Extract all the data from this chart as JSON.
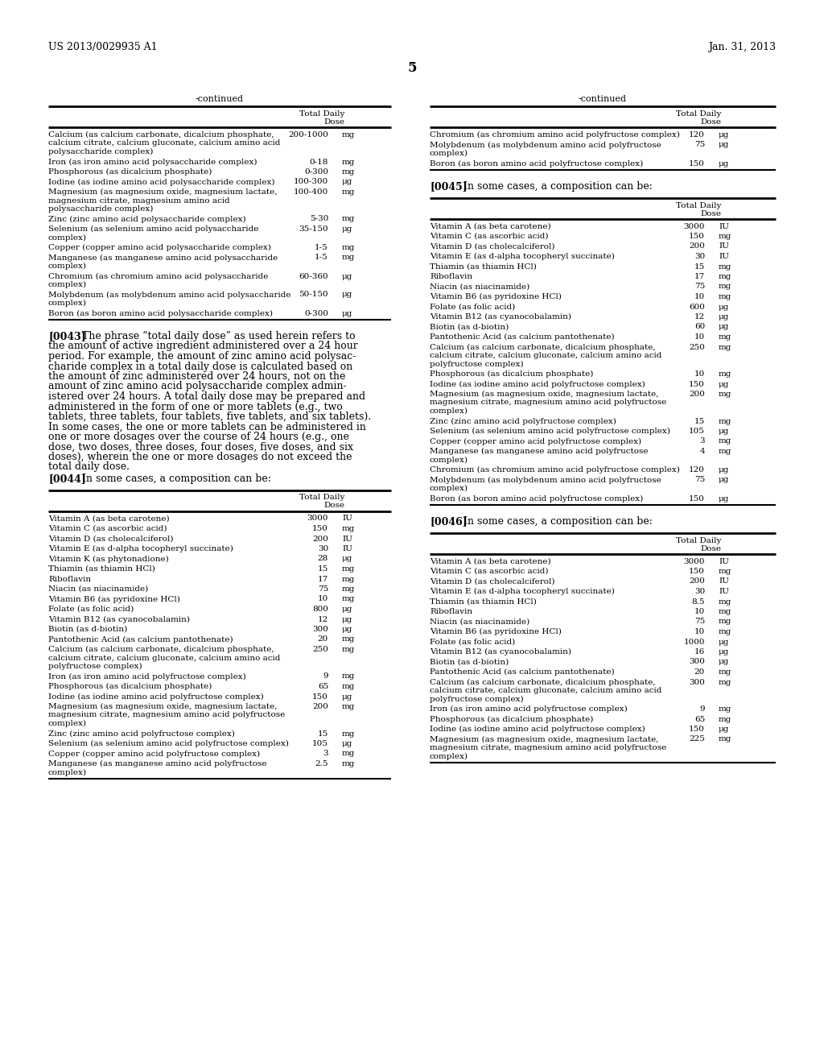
{
  "bg_color": "#ffffff",
  "header_left": "US 2013/0029935 A1",
  "header_right": "Jan. 31, 2013",
  "page_number": "5",
  "left_table_title": "-continued",
  "right_table_title": "-continued",
  "left_table_rows": [
    [
      "Calcium (as calcium carbonate, dicalcium phosphate,\ncalcium citrate, calcium gluconate, calcium amino acid\npolysaccharide complex)",
      "200-1000",
      "mg"
    ],
    [
      "Iron (as iron amino acid polysaccharide complex)",
      "0-18",
      "mg"
    ],
    [
      "Phosphorous (as dicalcium phosphate)",
      "0-300",
      "mg"
    ],
    [
      "Iodine (as iodine amino acid polysaccharide complex)",
      "100-300",
      "μg"
    ],
    [
      "Magnesium (as magnesium oxide, magnesium lactate,\nmagnesium citrate, magnesium amino acid\npolysaccharide complex)",
      "100-400",
      "mg"
    ],
    [
      "Zinc (zinc amino acid polysaccharide complex)",
      "5-30",
      "mg"
    ],
    [
      "Selenium (as selenium amino acid polysaccharide\ncomplex)",
      "35-150",
      "μg"
    ],
    [
      "Copper (copper amino acid polysaccharide complex)",
      "1-5",
      "mg"
    ],
    [
      "Manganese (as manganese amino acid polysaccharide\ncomplex)",
      "1-5",
      "mg"
    ],
    [
      "Chromium (as chromium amino acid polysaccharide\ncomplex)",
      "60-360",
      "μg"
    ],
    [
      "Molybdenum (as molybdenum amino acid polysaccharide\ncomplex)",
      "50-150",
      "μg"
    ],
    [
      "Boron (as boron amino acid polysaccharide complex)",
      "0-300",
      "μg"
    ]
  ],
  "right_table_rows": [
    [
      "Chromium (as chromium amino acid polyfructose complex)",
      "120",
      "μg"
    ],
    [
      "Molybdenum (as molybdenum amino acid polyfructose\ncomplex)",
      "75",
      "μg"
    ],
    [
      "Boron (as boron amino acid polyfructose complex)",
      "150",
      "μg"
    ]
  ],
  "para_0043_lines": [
    "The phrase “total daily dose” as used herein refers to",
    "the amount of active ingredient administered over a 24 hour",
    "period. For example, the amount of zinc amino acid polysac-",
    "charide complex in a total daily dose is calculated based on",
    "the amount of zinc administered over 24 hours, not on the",
    "amount of zinc amino acid polysaccharide complex admin-",
    "istered over 24 hours. A total daily dose may be prepared and",
    "administered in the form of one or more tablets (e.g., two",
    "tablets, three tablets, four tablets, five tablets, and six tablets).",
    "In some cases, the one or more tablets can be administered in",
    "one or more dosages over the course of 24 hours (e.g., one",
    "dose, two doses, three doses, four doses, five doses, and six",
    "doses), wherein the one or more dosages do not exceed the",
    "total daily dose."
  ],
  "table_0044_rows": [
    [
      "Vitamin A (as beta carotene)",
      "3000",
      "IU"
    ],
    [
      "Vitamin C (as ascorbic acid)",
      "150",
      "mg"
    ],
    [
      "Vitamin D (as cholecalciferol)",
      "200",
      "IU"
    ],
    [
      "Vitamin E (as d-alpha tocopheryl succinate)",
      "30",
      "IU"
    ],
    [
      "Vitamin K (as phytonadione)",
      "28",
      "μg"
    ],
    [
      "Thiamin (as thiamin HCl)",
      "15",
      "mg"
    ],
    [
      "Riboflavin",
      "17",
      "mg"
    ],
    [
      "Niacin (as niacinamide)",
      "75",
      "mg"
    ],
    [
      "Vitamin B6 (as pyridoxine HCl)",
      "10",
      "mg"
    ],
    [
      "Folate (as folic acid)",
      "800",
      "μg"
    ],
    [
      "Vitamin B12 (as cyanocobalamin)",
      "12",
      "μg"
    ],
    [
      "Biotin (as d-biotin)",
      "300",
      "μg"
    ],
    [
      "Pantothenic Acid (as calcium pantothenate)",
      "20",
      "mg"
    ],
    [
      "Calcium (as calcium carbonate, dicalcium phosphate,\ncalcium citrate, calcium gluconate, calcium amino acid\npolyfructose complex)",
      "250",
      "mg"
    ],
    [
      "Iron (as iron amino acid polyfructose complex)",
      "9",
      "mg"
    ],
    [
      "Phosphorous (as dicalcium phosphate)",
      "65",
      "mg"
    ],
    [
      "Iodine (as iodine amino acid polyfructose complex)",
      "150",
      "μg"
    ],
    [
      "Magnesium (as magnesium oxide, magnesium lactate,\nmagnesium citrate, magnesium amino acid polyfructose\ncomplex)",
      "200",
      "mg"
    ],
    [
      "Zinc (zinc amino acid polyfructose complex)",
      "15",
      "mg"
    ],
    [
      "Selenium (as selenium amino acid polyfructose complex)",
      "105",
      "μg"
    ],
    [
      "Copper (copper amino acid polyfructose complex)",
      "3",
      "mg"
    ],
    [
      "Manganese (as manganese amino acid polyfructose\ncomplex)",
      "2.5",
      "mg"
    ]
  ],
  "table_0045_rows": [
    [
      "Vitamin A (as beta carotene)",
      "3000",
      "IU"
    ],
    [
      "Vitamin C (as ascorbic acid)",
      "150",
      "mg"
    ],
    [
      "Vitamin D (as cholecalciferol)",
      "200",
      "IU"
    ],
    [
      "Vitamin E (as d-alpha tocopheryl succinate)",
      "30",
      "IU"
    ],
    [
      "Thiamin (as thiamin HCl)",
      "15",
      "mg"
    ],
    [
      "Riboflavin",
      "17",
      "mg"
    ],
    [
      "Niacin (as niacinamide)",
      "75",
      "mg"
    ],
    [
      "Vitamin B6 (as pyridoxine HCl)",
      "10",
      "mg"
    ],
    [
      "Folate (as folic acid)",
      "600",
      "μg"
    ],
    [
      "Vitamin B12 (as cyanocobalamin)",
      "12",
      "μg"
    ],
    [
      "Biotin (as d-biotin)",
      "60",
      "μg"
    ],
    [
      "Pantothenic Acid (as calcium pantothenate)",
      "10",
      "mg"
    ],
    [
      "Calcium (as calcium carbonate, dicalcium phosphate,\ncalcium citrate, calcium gluconate, calcium amino acid\npolyfructose complex)",
      "250",
      "mg"
    ],
    [
      "Phosphorous (as dicalcium phosphate)",
      "10",
      "mg"
    ],
    [
      "Iodine (as iodine amino acid polyfructose complex)",
      "150",
      "μg"
    ],
    [
      "Magnesium (as magnesium oxide, magnesium lactate,\nmagnesium citrate, magnesium amino acid polyfructose\ncomplex)",
      "200",
      "mg"
    ],
    [
      "Zinc (zinc amino acid polyfructose complex)",
      "15",
      "mg"
    ],
    [
      "Selenium (as selenium amino acid polyfructose complex)",
      "105",
      "μg"
    ],
    [
      "Copper (copper amino acid polyfructose complex)",
      "3",
      "mg"
    ],
    [
      "Manganese (as manganese amino acid polyfructose\ncomplex)",
      "4",
      "mg"
    ],
    [
      "Chromium (as chromium amino acid polyfructose complex)",
      "120",
      "μg"
    ],
    [
      "Molybdenum (as molybdenum amino acid polyfructose\ncomplex)",
      "75",
      "μg"
    ],
    [
      "Boron (as boron amino acid polyfructose complex)",
      "150",
      "μg"
    ]
  ],
  "table_0046_rows": [
    [
      "Vitamin A (as beta carotene)",
      "3000",
      "IU"
    ],
    [
      "Vitamin C (as ascorbic acid)",
      "150",
      "mg"
    ],
    [
      "Vitamin D (as cholecalciferol)",
      "200",
      "IU"
    ],
    [
      "Vitamin E (as d-alpha tocopheryl succinate)",
      "30",
      "IU"
    ],
    [
      "Thiamin (as thiamin HCl)",
      "8.5",
      "mg"
    ],
    [
      "Riboflavin",
      "10",
      "mg"
    ],
    [
      "Niacin (as niacinamide)",
      "75",
      "mg"
    ],
    [
      "Vitamin B6 (as pyridoxine HCl)",
      "10",
      "mg"
    ],
    [
      "Folate (as folic acid)",
      "1000",
      "μg"
    ],
    [
      "Vitamin B12 (as cyanocobalamin)",
      "16",
      "μg"
    ],
    [
      "Biotin (as d-biotin)",
      "300",
      "μg"
    ],
    [
      "Pantothenic Acid (as calcium pantothenate)",
      "20",
      "mg"
    ],
    [
      "Calcium (as calcium carbonate, dicalcium phosphate,\ncalcium citrate, calcium gluconate, calcium amino acid\npolyfructose complex)",
      "300",
      "mg"
    ],
    [
      "Iron (as iron amino acid polyfructose complex)",
      "9",
      "mg"
    ],
    [
      "Phosphorous (as dicalcium phosphate)",
      "65",
      "mg"
    ],
    [
      "Iodine (as iodine amino acid polyfructose complex)",
      "150",
      "μg"
    ],
    [
      "Magnesium (as magnesium oxide, magnesium lactate,\nmagnesium citrate, magnesium amino acid polyfructose\ncomplex)",
      "225",
      "mg"
    ]
  ]
}
